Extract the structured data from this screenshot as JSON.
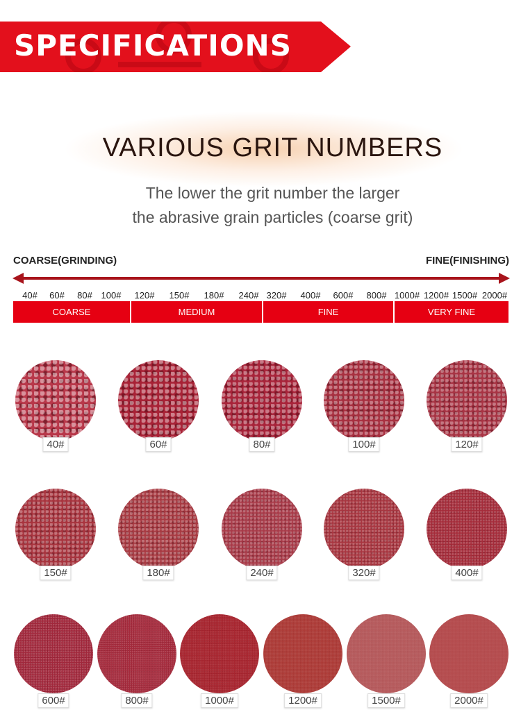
{
  "banner": {
    "title": "SPECIFICATIONS",
    "color": "#e3101c"
  },
  "heading": "VARIOUS GRIT NUMBERS",
  "subtitle": [
    "The lower the grit number the larger",
    "the abrasive grain particles (coarse grit)"
  ],
  "scale": {
    "left_label": "COARSE(GRINDING)",
    "right_label": "FINE(FINISHING)",
    "arrow_color": "#a8141c",
    "ticks": [
      "40#",
      "60#",
      "80#",
      "100#",
      "120#",
      "150#",
      "180#",
      "240#",
      "320#",
      "400#",
      "600#",
      "800#",
      "1000#",
      "1200#",
      "1500#",
      "2000#"
    ],
    "segments": [
      "COARSE",
      "MEDIUM",
      "FINE",
      "VERY FINE"
    ],
    "segment_color": "#e60012"
  },
  "discs": [
    {
      "label": "40#",
      "color": "#b8384a"
    },
    {
      "label": "60#",
      "color": "#a82236"
    },
    {
      "label": "80#",
      "color": "#a8243a"
    },
    {
      "label": "100#",
      "color": "#a83040"
    },
    {
      "label": "120#",
      "color": "#a83444"
    },
    {
      "label": "150#",
      "color": "#a8343e"
    },
    {
      "label": "180#",
      "color": "#a83a42"
    },
    {
      "label": "240#",
      "color": "#a83a48"
    },
    {
      "label": "320#",
      "color": "#a83640"
    },
    {
      "label": "400#",
      "color": "#a52c3a"
    },
    {
      "label": "600#",
      "color": "#a2283c"
    },
    {
      "label": "800#",
      "color": "#a52a3c"
    },
    {
      "label": "1000#",
      "color": "#a8242e"
    },
    {
      "label": "1200#",
      "color": "#ad3a36"
    },
    {
      "label": "1500#",
      "color": "#b65a5c"
    },
    {
      "label": "2000#",
      "color": "#b54c4e"
    }
  ]
}
